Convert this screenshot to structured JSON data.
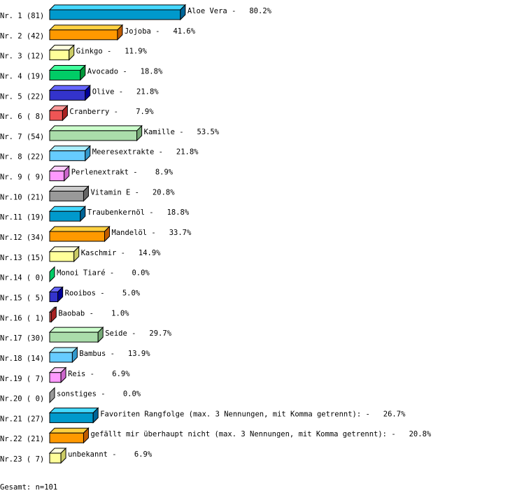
{
  "chart_data": {
    "type": "bar",
    "orientation": "horizontal",
    "style": "3d",
    "rank_labels": [
      "Nr. 1 (81)",
      "Nr. 2 (42)",
      "Nr. 3 (12)",
      "Nr. 4 (19)",
      "Nr. 5 (22)",
      "Nr. 6 ( 8)",
      "Nr. 7 (54)",
      "Nr. 8 (22)",
      "Nr. 9 ( 9)",
      "Nr.10 (21)",
      "Nr.11 (19)",
      "Nr.12 (34)",
      "Nr.13 (15)",
      "Nr.14 ( 0)",
      "Nr.15 ( 5)",
      "Nr.16 ( 1)",
      "Nr.17 (30)",
      "Nr.18 (14)",
      "Nr.19 ( 7)",
      "Nr.20 ( 0)",
      "Nr.21 (27)",
      "Nr.22 (21)",
      "Nr.23 ( 7)"
    ],
    "categories": [
      "Aloe Vera",
      "Jojoba",
      "Ginkgo",
      "Avocado",
      "Olive",
      "Cranberry",
      "Kamille",
      "Meeresextrakte",
      "Perlenextrakt",
      "Vitamin E",
      "Traubenkernöl",
      "Mandelöl",
      "Kaschmir",
      "Monoi Tiaré",
      "Rooibos",
      "Baobab",
      "Seide",
      "Bambus",
      "Reis",
      "sonstiges",
      "Favoriten Rangfolge (max. 3 Nennungen, mit Komma getrennt):",
      "gefällt mir überhaupt nicht (max. 3 Nennungen, mit Komma getrennt):",
      "unbekannt"
    ],
    "counts": [
      81,
      42,
      12,
      19,
      22,
      8,
      54,
      22,
      9,
      21,
      19,
      34,
      15,
      0,
      5,
      1,
      30,
      14,
      7,
      0,
      27,
      21,
      7
    ],
    "values": [
      80.2,
      41.6,
      11.9,
      18.8,
      21.8,
      7.9,
      53.5,
      21.8,
      8.9,
      20.8,
      18.8,
      33.7,
      14.9,
      0.0,
      5.0,
      1.0,
      29.7,
      13.9,
      6.9,
      0.0,
      26.7,
      20.8,
      6.9
    ],
    "unit": "%",
    "palette": [
      {
        "front": "#0099cc",
        "top": "#44d8ff",
        "side": "#006699"
      },
      {
        "front": "#ff9900",
        "top": "#ffd040",
        "side": "#c05c00"
      },
      {
        "front": "#ffff99",
        "top": "#ffffdd",
        "side": "#cccc66"
      },
      {
        "front": "#00cc66",
        "top": "#40ff9c",
        "side": "#00993a"
      },
      {
        "front": "#3333cc",
        "top": "#6666ff",
        "side": "#000099"
      },
      {
        "front": "#ee5555",
        "top": "#ff9999",
        "side": "#aa2222"
      },
      {
        "front": "#aaddaa",
        "top": "#ccffcc",
        "side": "#77aa77"
      },
      {
        "front": "#66ccff",
        "top": "#aaeeff",
        "side": "#3399cc"
      },
      {
        "front": "#ff99ff",
        "top": "#ffccff",
        "side": "#cc66cc"
      },
      {
        "front": "#999999",
        "top": "#cccccc",
        "side": "#666666"
      }
    ]
  },
  "footer": {
    "total": "Gesamt: n=101"
  }
}
